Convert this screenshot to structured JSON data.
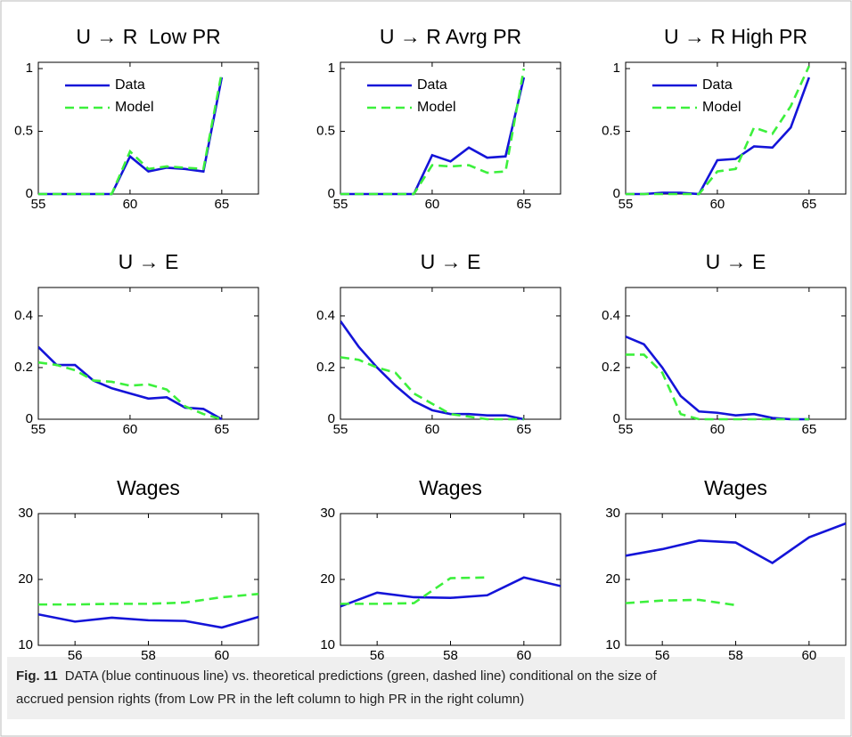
{
  "chart_data": [
    {
      "type": "line",
      "title": "U → R  Low PR",
      "legend": "upper left",
      "x": [
        55,
        56,
        57,
        58,
        59,
        60,
        61,
        62,
        63,
        64,
        65
      ],
      "xlim": [
        55,
        67
      ],
      "ylim": [
        0,
        1.05
      ],
      "xticks": [
        55,
        60,
        65
      ],
      "yticks": [
        0,
        0.5,
        1
      ],
      "series": [
        {
          "name": "Data",
          "color": "#1414d8",
          "linestyle": "solid",
          "values": [
            0,
            0,
            0,
            0,
            0,
            0.3,
            0.18,
            0.21,
            0.2,
            0.18,
            0.93
          ]
        },
        {
          "name": "Model",
          "color": "#3cf03c",
          "linestyle": "dashed",
          "values": [
            0,
            0,
            0,
            0,
            0,
            0.34,
            0.2,
            0.22,
            0.21,
            0.2,
            0.97
          ]
        }
      ]
    },
    {
      "type": "line",
      "title": "U → R Avrg PR",
      "legend": "upper left",
      "x": [
        55,
        56,
        57,
        58,
        59,
        60,
        61,
        62,
        63,
        64,
        65
      ],
      "xlim": [
        55,
        67
      ],
      "ylim": [
        0,
        1.05
      ],
      "xticks": [
        55,
        60,
        65
      ],
      "yticks": [
        0,
        0.5,
        1
      ],
      "series": [
        {
          "name": "Data",
          "color": "#1414d8",
          "linestyle": "solid",
          "values": [
            0,
            0,
            0,
            0,
            0,
            0.31,
            0.26,
            0.37,
            0.29,
            0.3,
            0.93
          ]
        },
        {
          "name": "Model",
          "color": "#3cf03c",
          "linestyle": "dashed",
          "values": [
            0,
            0,
            0,
            0,
            0,
            0.23,
            0.22,
            0.23,
            0.17,
            0.18,
            1.0
          ]
        }
      ]
    },
    {
      "type": "line",
      "title": "U → R High PR",
      "legend": "upper left",
      "x": [
        55,
        56,
        57,
        58,
        59,
        60,
        61,
        62,
        63,
        64,
        65
      ],
      "xlim": [
        55,
        67
      ],
      "ylim": [
        0,
        1.05
      ],
      "xticks": [
        55,
        60,
        65
      ],
      "yticks": [
        0,
        0.5,
        1
      ],
      "series": [
        {
          "name": "Data",
          "color": "#1414d8",
          "linestyle": "solid",
          "values": [
            0,
            0,
            0.01,
            0.01,
            0,
            0.27,
            0.28,
            0.38,
            0.37,
            0.53,
            0.93
          ]
        },
        {
          "name": "Model",
          "color": "#3cf03c",
          "linestyle": "dashed",
          "values": [
            0,
            0,
            0,
            0,
            0,
            0.18,
            0.2,
            0.53,
            0.48,
            0.7,
            1.02
          ]
        }
      ]
    },
    {
      "type": "line",
      "title": "U → E",
      "x": [
        55,
        56,
        57,
        58,
        59,
        60,
        61,
        62,
        63,
        64,
        65
      ],
      "xlim": [
        55,
        67
      ],
      "ylim": [
        0,
        0.51
      ],
      "xticks": [
        55,
        60,
        65
      ],
      "yticks": [
        0,
        0.2,
        0.4
      ],
      "series": [
        {
          "color": "#1414d8",
          "linestyle": "solid",
          "values": [
            0.28,
            0.21,
            0.21,
            0.15,
            0.12,
            0.1,
            0.08,
            0.085,
            0.045,
            0.04,
            0
          ]
        },
        {
          "color": "#3cf03c",
          "linestyle": "dashed",
          "values": [
            0.22,
            0.21,
            0.19,
            0.15,
            0.145,
            0.13,
            0.135,
            0.115,
            0.05,
            0.02,
            0
          ]
        }
      ]
    },
    {
      "type": "line",
      "title": "U → E",
      "x": [
        55,
        56,
        57,
        58,
        59,
        60,
        61,
        62,
        63,
        64,
        65
      ],
      "xlim": [
        55,
        67
      ],
      "ylim": [
        0,
        0.51
      ],
      "xticks": [
        55,
        60,
        65
      ],
      "yticks": [
        0,
        0.2,
        0.4
      ],
      "series": [
        {
          "color": "#1414d8",
          "linestyle": "solid",
          "values": [
            0.38,
            0.28,
            0.2,
            0.13,
            0.07,
            0.035,
            0.02,
            0.02,
            0.015,
            0.015,
            0
          ]
        },
        {
          "color": "#3cf03c",
          "linestyle": "dashed",
          "values": [
            0.24,
            0.23,
            0.2,
            0.18,
            0.1,
            0.06,
            0.02,
            0.01,
            0,
            0,
            0
          ]
        }
      ]
    },
    {
      "type": "line",
      "title": "U → E",
      "x": [
        55,
        56,
        57,
        58,
        59,
        60,
        61,
        62,
        63,
        64,
        65
      ],
      "xlim": [
        55,
        67
      ],
      "ylim": [
        0,
        0.51
      ],
      "xticks": [
        55,
        60,
        65
      ],
      "yticks": [
        0,
        0.2,
        0.4
      ],
      "series": [
        {
          "color": "#1414d8",
          "linestyle": "solid",
          "values": [
            0.32,
            0.29,
            0.2,
            0.09,
            0.03,
            0.025,
            0.015,
            0.02,
            0.005,
            0,
            0
          ]
        },
        {
          "color": "#3cf03c",
          "linestyle": "dashed",
          "values": [
            0.25,
            0.25,
            0.18,
            0.02,
            0,
            0,
            0,
            0,
            0,
            0,
            0
          ]
        }
      ]
    },
    {
      "type": "line",
      "title": "Wages",
      "x": [
        55,
        56,
        57,
        58,
        59,
        60,
        61
      ],
      "xlim": [
        55,
        61
      ],
      "ylim": [
        10,
        30
      ],
      "xticks": [
        56,
        58,
        60
      ],
      "yticks": [
        10,
        20,
        30
      ],
      "series": [
        {
          "color": "#1414d8",
          "linestyle": "solid",
          "values": [
            14.7,
            13.6,
            14.2,
            13.8,
            13.7,
            12.7,
            14.3
          ]
        },
        {
          "color": "#3cf03c",
          "linestyle": "dashed",
          "values": [
            16.2,
            16.2,
            16.3,
            16.3,
            16.5,
            17.3,
            17.8
          ]
        }
      ]
    },
    {
      "type": "line",
      "title": "Wages",
      "x": [
        55,
        56,
        57,
        58,
        59,
        60,
        61
      ],
      "xlim": [
        55,
        61
      ],
      "ylim": [
        10,
        30
      ],
      "xticks": [
        56,
        58,
        60
      ],
      "yticks": [
        10,
        20,
        30
      ],
      "series": [
        {
          "color": "#1414d8",
          "linestyle": "solid",
          "values": [
            15.9,
            18,
            17.3,
            17.2,
            17.6,
            20.3,
            19
          ]
        },
        {
          "color": "#3cf03c",
          "linestyle": "dashed",
          "values": [
            16.3,
            16.3,
            16.4,
            20.2,
            20.3,
            null,
            null
          ]
        }
      ]
    },
    {
      "type": "line",
      "title": "Wages",
      "x": [
        55,
        56,
        57,
        58,
        59,
        60,
        61
      ],
      "xlim": [
        55,
        61
      ],
      "ylim": [
        10,
        30
      ],
      "xticks": [
        56,
        58,
        60
      ],
      "yticks": [
        10,
        20,
        30
      ],
      "series": [
        {
          "color": "#1414d8",
          "linestyle": "solid",
          "values": [
            23.6,
            24.6,
            25.9,
            25.6,
            22.5,
            26.4,
            28.5
          ]
        },
        {
          "color": "#3cf03c",
          "linestyle": "dashed",
          "values": [
            16.4,
            16.8,
            16.9,
            16.1,
            null,
            null,
            null
          ]
        }
      ]
    }
  ],
  "caption": {
    "label": "Fig. 11",
    "line1": "DATA (blue continuous line) vs. theoretical predictions (green, dashed line) conditional on the size of",
    "line2": "accrued pension rights (from Low PR in the left column to high PR in the right column)"
  }
}
